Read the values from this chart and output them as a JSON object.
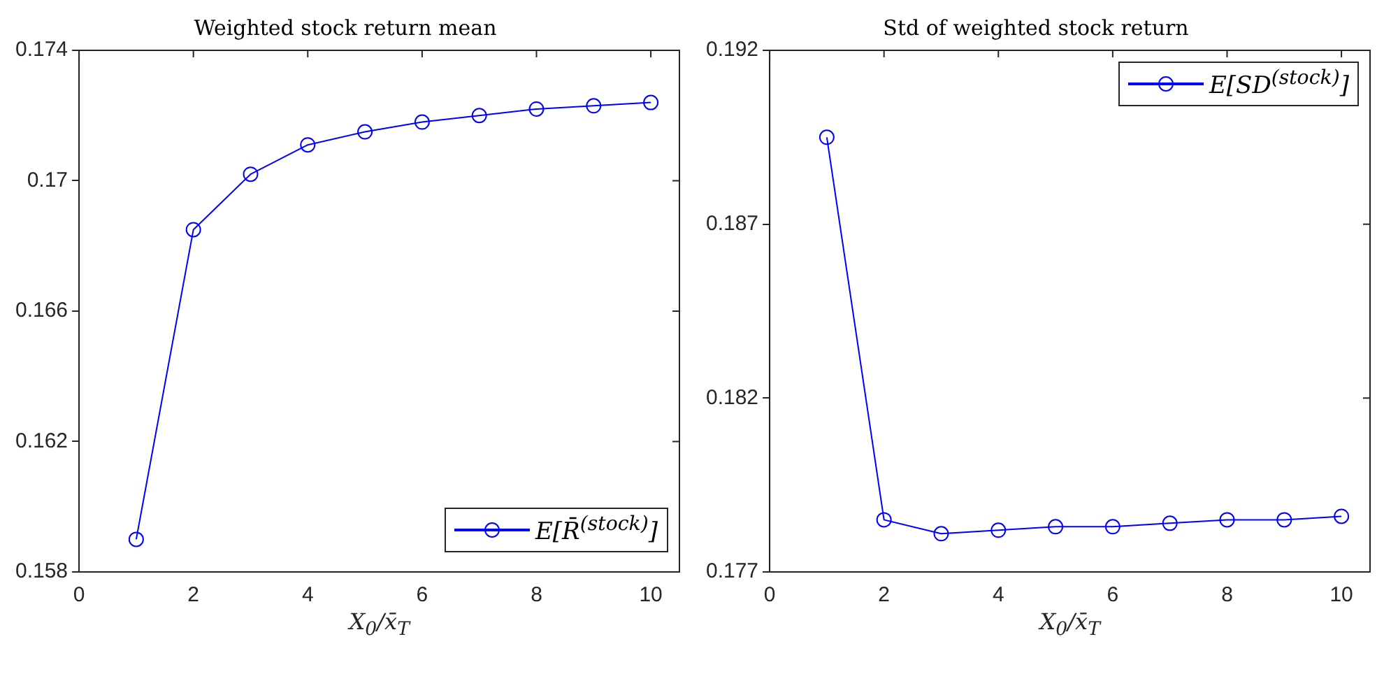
{
  "chart_data": [
    {
      "type": "line",
      "title": "Weighted stock return mean",
      "xlabel": "X$_{0}$/x̄$_{T}$",
      "x": [
        1,
        2,
        3,
        4,
        5,
        6,
        7,
        8,
        9,
        10
      ],
      "series": [
        {
          "name": "E[R̄$^{(stock)}$]",
          "color": "#0000ff",
          "values": [
            0.159,
            0.1685,
            0.1702,
            0.1711,
            0.1715,
            0.1718,
            0.172,
            0.1722,
            0.1723,
            0.1724
          ]
        }
      ],
      "xlim": [
        0,
        10.5
      ],
      "xticks": [
        0,
        2,
        4,
        6,
        8,
        10
      ],
      "ylim": [
        0.158,
        0.174
      ],
      "yticks": [
        0.158,
        0.162,
        0.166,
        0.17,
        0.174
      ],
      "grid": false,
      "legend": "bottom right",
      "marker": "circle",
      "line_style": "solid"
    },
    {
      "type": "line",
      "title": "Std of weighted stock return",
      "xlabel": "X$_{0}$/x̄$_{T}$",
      "x": [
        1,
        2,
        3,
        4,
        5,
        6,
        7,
        8,
        9,
        10
      ],
      "series": [
        {
          "name": "E[SD$^{(stock)}$]",
          "color": "#0000ff",
          "values": [
            0.1895,
            0.1785,
            0.1781,
            0.1782,
            0.1783,
            0.1783,
            0.1784,
            0.1785,
            0.1785,
            0.1786
          ]
        }
      ],
      "xlim": [
        0,
        10.5
      ],
      "xticks": [
        0,
        2,
        4,
        6,
        8,
        10
      ],
      "ylim": [
        0.177,
        0.192
      ],
      "yticks": [
        0.177,
        0.182,
        0.187,
        0.192
      ],
      "grid": false,
      "legend": "top right",
      "marker": "circle",
      "line_style": "solid"
    }
  ]
}
